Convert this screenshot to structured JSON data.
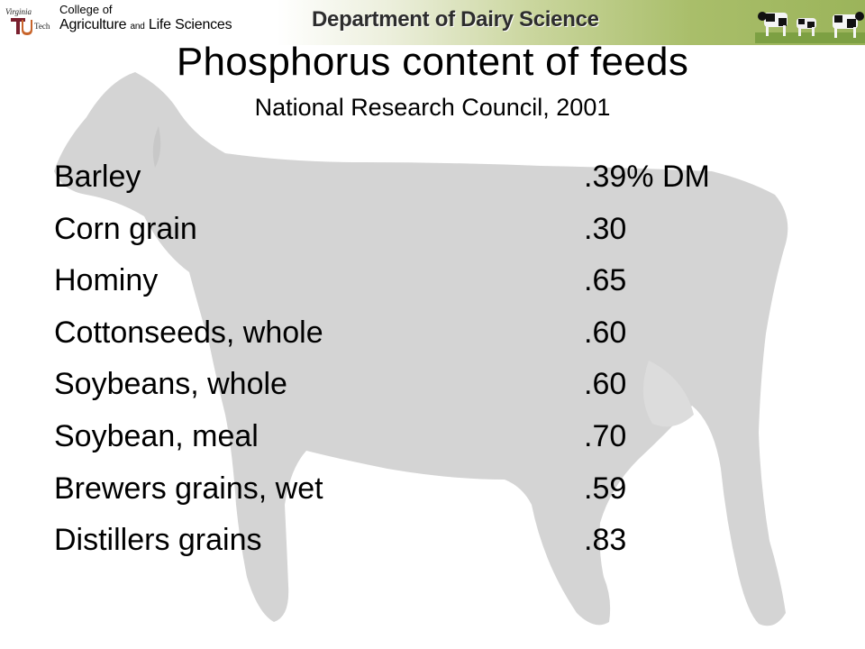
{
  "header": {
    "logo_line1": "Virginia",
    "logo_line2": "Tech",
    "college_line1": "College of",
    "college_line2_a": "Agriculture ",
    "college_line2_b": "and",
    "college_line2_c": " Life Sciences",
    "department": "Department of Dairy Science"
  },
  "slide": {
    "title": "Phosphorus content of feeds",
    "subtitle": "National Research Council, 2001",
    "feeds": [
      {
        "name": "Barley",
        "value": ".39% DM"
      },
      {
        "name": "Corn grain",
        "value": ".30"
      },
      {
        "name": "Hominy",
        "value": ".65"
      },
      {
        "name": "Cottonseeds, whole",
        "value": ".60"
      },
      {
        "name": "Soybeans, whole",
        "value": ".60"
      },
      {
        "name": "Soybean, meal",
        "value": ".70"
      },
      {
        "name": "Brewers grains, wet",
        "value": ".59"
      },
      {
        "name": "Distillers grains",
        "value": ".83"
      }
    ]
  },
  "colors": {
    "banner_green": "#9bb45a",
    "vt_maroon": "#7a1f2e",
    "cow_silhouette": "#d4d4d4"
  },
  "icons": [
    "virginia-tech-logo",
    "cow-silhouette-background",
    "grazing-cows-image"
  ]
}
